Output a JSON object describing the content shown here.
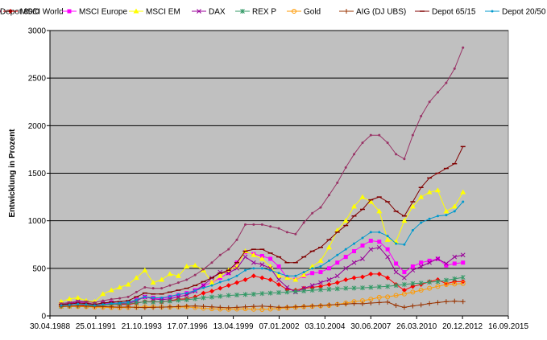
{
  "chart_data": {
    "type": "line",
    "title": "",
    "xlabel": "",
    "ylabel": "Entwicklung in Prozent",
    "xlim": [
      "1988-04-30",
      "2015-09-16"
    ],
    "ylim": [
      0,
      3000
    ],
    "x_ticks": [
      "30.04.1988",
      "25.01.1991",
      "21.10.1993",
      "17.07.1996",
      "13.04.1999",
      "07.01.2002",
      "03.10.2004",
      "30.06.2007",
      "26.03.2010",
      "20.12.2012",
      "16.09.2015"
    ],
    "y_ticks": [
      0,
      500,
      1000,
      1500,
      2000,
      2500,
      3000
    ],
    "grid": "horizontal",
    "legend_position": "top",
    "background_color": "#c0c0c0",
    "x": [
      "1988-12-31",
      "1989-06-30",
      "1989-12-31",
      "1990-06-30",
      "1990-12-31",
      "1991-06-30",
      "1991-12-31",
      "1992-06-30",
      "1992-12-31",
      "1993-06-30",
      "1993-12-31",
      "1994-06-30",
      "1994-12-31",
      "1995-06-30",
      "1995-12-31",
      "1996-06-30",
      "1996-12-31",
      "1997-06-30",
      "1997-12-31",
      "1998-06-30",
      "1998-12-31",
      "1999-06-30",
      "1999-12-31",
      "2000-06-30",
      "2000-12-31",
      "2001-06-30",
      "2001-12-31",
      "2002-06-30",
      "2002-12-31",
      "2003-06-30",
      "2003-12-31",
      "2004-06-30",
      "2004-12-31",
      "2005-06-30",
      "2005-12-31",
      "2006-06-30",
      "2006-12-31",
      "2007-06-30",
      "2007-12-31",
      "2008-06-30",
      "2008-12-31",
      "2009-06-30",
      "2009-12-31",
      "2010-06-30",
      "2010-12-31",
      "2011-06-30",
      "2011-12-31",
      "2012-06-30",
      "2012-12-31"
    ],
    "series": [
      {
        "name": "MSCI World",
        "color": "#ff0000",
        "marker": "diamond",
        "values": [
          110,
          115,
          120,
          112,
          102,
          110,
          118,
          120,
          118,
          135,
          150,
          150,
          145,
          160,
          175,
          180,
          200,
          240,
          260,
          290,
          320,
          350,
          380,
          420,
          400,
          380,
          330,
          280,
          270,
          290,
          300,
          310,
          330,
          350,
          380,
          400,
          410,
          440,
          440,
          400,
          330,
          270,
          310,
          330,
          360,
          380,
          340,
          360,
          360
        ]
      },
      {
        "name": "MSCI Europe",
        "color": "#ff00ff",
        "marker": "square",
        "values": [
          120,
          125,
          140,
          130,
          115,
          125,
          140,
          130,
          140,
          170,
          200,
          190,
          180,
          200,
          220,
          240,
          270,
          320,
          350,
          400,
          450,
          560,
          670,
          650,
          630,
          600,
          520,
          400,
          380,
          420,
          450,
          460,
          500,
          560,
          620,
          680,
          740,
          790,
          780,
          700,
          550,
          460,
          520,
          560,
          580,
          600,
          530,
          550,
          560
        ]
      },
      {
        "name": "MSCI EM",
        "color": "#ffff00",
        "marker": "triangle",
        "values": [
          150,
          180,
          190,
          160,
          150,
          230,
          270,
          300,
          330,
          400,
          480,
          350,
          380,
          440,
          420,
          520,
          530,
          480,
          350,
          420,
          480,
          520,
          680,
          640,
          600,
          520,
          420,
          400,
          380,
          430,
          520,
          580,
          720,
          900,
          1000,
          1150,
          1250,
          1200,
          1100,
          800,
          780,
          1000,
          1150,
          1250,
          1300,
          1320,
          1100,
          1150,
          1300
        ]
      },
      {
        "name": "DAX",
        "color": "#990099",
        "marker": "x",
        "values": [
          120,
          130,
          150,
          140,
          120,
          135,
          140,
          130,
          130,
          160,
          200,
          180,
          170,
          180,
          200,
          220,
          260,
          320,
          400,
          460,
          450,
          500,
          620,
          560,
          540,
          500,
          380,
          300,
          250,
          290,
          320,
          350,
          380,
          420,
          500,
          560,
          600,
          700,
          720,
          620,
          460,
          400,
          480,
          520,
          560,
          600,
          550,
          620,
          640
        ]
      },
      {
        "name": "REX P",
        "color": "#339966",
        "marker": "star",
        "values": [
          100,
          102,
          104,
          106,
          108,
          112,
          118,
          124,
          130,
          138,
          148,
          145,
          148,
          155,
          165,
          170,
          180,
          190,
          198,
          206,
          215,
          220,
          225,
          228,
          235,
          240,
          245,
          250,
          258,
          262,
          270,
          275,
          280,
          285,
          290,
          292,
          295,
          300,
          305,
          310,
          320,
          330,
          340,
          345,
          355,
          360,
          375,
          390,
          405
        ]
      },
      {
        "name": "Gold",
        "color": "#ff9900",
        "marker": "circle",
        "values": [
          100,
          100,
          98,
          96,
          92,
          90,
          88,
          86,
          88,
          92,
          95,
          95,
          93,
          92,
          93,
          94,
          88,
          80,
          75,
          72,
          70,
          72,
          75,
          70,
          68,
          72,
          78,
          85,
          90,
          95,
          100,
          105,
          110,
          120,
          135,
          150,
          160,
          175,
          195,
          200,
          215,
          230,
          250,
          270,
          290,
          310,
          330,
          335,
          340
        ]
      },
      {
        "name": "AIG (DJ UBS)",
        "color": "#993300",
        "marker": "plus",
        "values": [
          100,
          102,
          105,
          102,
          100,
          98,
          95,
          92,
          94,
          90,
          88,
          90,
          92,
          95,
          98,
          102,
          105,
          100,
          95,
          90,
          85,
          90,
          95,
          100,
          102,
          98,
          90,
          92,
          95,
          100,
          105,
          108,
          115,
          120,
          125,
          130,
          128,
          135,
          140,
          145,
          110,
          90,
          105,
          115,
          130,
          140,
          150,
          155,
          150
        ]
      },
      {
        "name": "Depot 65/15",
        "color": "#800000",
        "marker": "dash",
        "values": [
          120,
          125,
          135,
          130,
          120,
          135,
          145,
          150,
          160,
          200,
          240,
          230,
          230,
          250,
          270,
          290,
          320,
          360,
          400,
          450,
          480,
          560,
          680,
          700,
          700,
          660,
          620,
          560,
          560,
          620,
          680,
          720,
          800,
          880,
          950,
          1050,
          1120,
          1220,
          1250,
          1200,
          1100,
          1050,
          1200,
          1350,
          1450,
          1500,
          1550,
          1600,
          1780
        ]
      },
      {
        "name": "Depot 20/50",
        "color": "#0099cc",
        "marker": "dot",
        "values": [
          110,
          115,
          125,
          120,
          110,
          120,
          130,
          135,
          145,
          170,
          200,
          190,
          190,
          205,
          225,
          240,
          265,
          295,
          320,
          355,
          380,
          420,
          480,
          500,
          500,
          480,
          450,
          420,
          420,
          460,
          500,
          520,
          580,
          640,
          700,
          760,
          820,
          880,
          880,
          840,
          760,
          750,
          900,
          980,
          1020,
          1050,
          1060,
          1100,
          1200
        ]
      },
      {
        "name": "Depot 80/0",
        "color": "#993366",
        "marker": "dot",
        "values": [
          130,
          140,
          155,
          150,
          140,
          160,
          175,
          185,
          200,
          250,
          300,
          290,
          290,
          320,
          350,
          380,
          430,
          490,
          560,
          640,
          700,
          800,
          960,
          960,
          960,
          940,
          920,
          880,
          860,
          980,
          1080,
          1140,
          1270,
          1400,
          1560,
          1700,
          1820,
          1900,
          1900,
          1820,
          1700,
          1650,
          1900,
          2100,
          2250,
          2350,
          2450,
          2600,
          2820
        ]
      }
    ]
  }
}
